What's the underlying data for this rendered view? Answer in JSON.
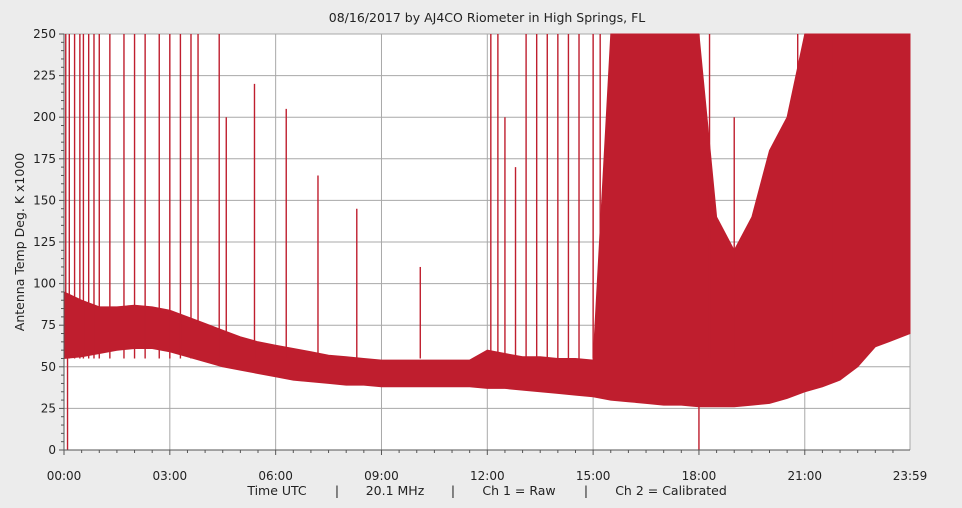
{
  "chart_data": {
    "type": "line",
    "title": "08/16/2017  by   AJ4CO Riometer  in  High Springs, FL",
    "ylabel": "Antenna Temp Deg. K x1000",
    "xlabel_parts": [
      "Time UTC",
      "|",
      "20.1 MHz",
      "|",
      "Ch 1 = Raw",
      "|",
      "Ch 2 = Calibrated"
    ],
    "ylim": [
      0,
      250
    ],
    "yticks": [
      0,
      25,
      50,
      75,
      100,
      125,
      150,
      175,
      200,
      225,
      250
    ],
    "xlim_hours": [
      0,
      23.983
    ],
    "xticks": [
      {
        "label": "00:00",
        "hour": 0
      },
      {
        "label": "03:00",
        "hour": 3
      },
      {
        "label": "06:00",
        "hour": 6
      },
      {
        "label": "09:00",
        "hour": 9
      },
      {
        "label": "12:00",
        "hour": 12
      },
      {
        "label": "15:00",
        "hour": 15
      },
      {
        "label": "18:00",
        "hour": 18
      },
      {
        "label": "21:00",
        "hour": 21
      },
      {
        "label": "23:59",
        "hour": 23.983
      }
    ],
    "grid": true,
    "series_color": "#bf1e2e",
    "series": [
      {
        "name": "Ch 1 = Raw",
        "x_hours": [
          0,
          0.5,
          1,
          1.5,
          2,
          2.5,
          3,
          3.5,
          4,
          4.5,
          5,
          5.5,
          6,
          6.5,
          7,
          7.5,
          8,
          8.5,
          9,
          9.5,
          10,
          10.5,
          11,
          11.5,
          12,
          12.5,
          13,
          13.5,
          14,
          14.5,
          15,
          15.5,
          16,
          16.5,
          17,
          17.5,
          18,
          18.5,
          19,
          19.5,
          20,
          20.5,
          21,
          21.5,
          22,
          22.5,
          23,
          23.5,
          23.983
        ],
        "upper": [
          95,
          90,
          86,
          86,
          87,
          86,
          84,
          80,
          76,
          72,
          68,
          65,
          63,
          61,
          59,
          57,
          56,
          55,
          54,
          54,
          54,
          54,
          54,
          54,
          60,
          58,
          56,
          56,
          55,
          55,
          54,
          250,
          250,
          250,
          250,
          250,
          250,
          140,
          120,
          140,
          180,
          200,
          250,
          250,
          250,
          250,
          250,
          250,
          250
        ],
        "lower": [
          55,
          56,
          58,
          60,
          61,
          61,
          59,
          56,
          53,
          50,
          48,
          46,
          44,
          42,
          41,
          40,
          39,
          39,
          38,
          38,
          38,
          38,
          38,
          38,
          37,
          37,
          36,
          35,
          34,
          33,
          32,
          30,
          29,
          28,
          27,
          27,
          26,
          26,
          26,
          27,
          28,
          31,
          35,
          38,
          42,
          50,
          62,
          66,
          70
        ]
      }
    ],
    "spike_hours": [
      0.05,
      0.15,
      0.3,
      0.45,
      0.55,
      0.7,
      0.85,
      1.0,
      1.3,
      1.7,
      2.0,
      2.3,
      2.7,
      3.0,
      3.3,
      3.6,
      3.8,
      4.4,
      4.6,
      5.4,
      6.3,
      7.2,
      8.3,
      10.1,
      12.1,
      12.3,
      12.5,
      12.8,
      13.1,
      13.4,
      13.7,
      14.0,
      14.3,
      14.6,
      15.0,
      15.2,
      17.0,
      17.8,
      18.0,
      18.3,
      19.0,
      20.8,
      21.3,
      21.5,
      21.8
    ],
    "spike_tops": [
      250,
      250,
      250,
      250,
      250,
      250,
      250,
      250,
      250,
      250,
      250,
      250,
      250,
      250,
      250,
      250,
      250,
      250,
      200,
      220,
      205,
      165,
      145,
      110,
      250,
      250,
      200,
      170,
      250,
      250,
      250,
      250,
      250,
      250,
      250,
      250,
      250,
      200,
      250,
      250,
      200,
      250,
      250,
      250,
      250
    ],
    "dip_hours": [
      0.1,
      18.0
    ]
  }
}
